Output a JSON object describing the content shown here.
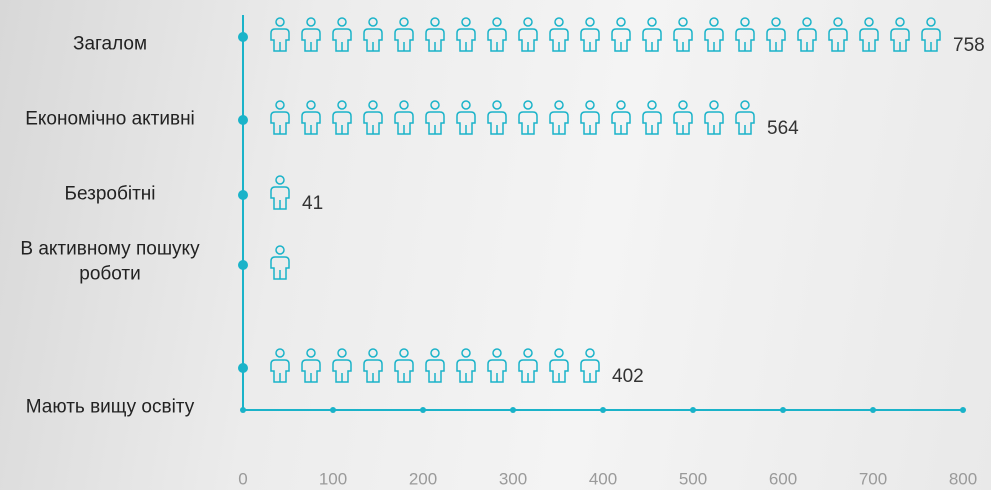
{
  "chart_data": {
    "type": "pictogram",
    "categories": [
      "Загалом",
      "Економічно активні",
      "Безробітні",
      "В активному пошуку роботи",
      "Мають вищу освіту"
    ],
    "values": [
      758,
      564,
      41,
      20,
      402
    ],
    "value_labels": [
      "758",
      "564",
      "41",
      null,
      "402"
    ],
    "color": "#1ab3c9",
    "xlim": [
      0,
      800
    ],
    "xticks": [
      0,
      100,
      200,
      300,
      400,
      500,
      600,
      700,
      800
    ]
  }
}
